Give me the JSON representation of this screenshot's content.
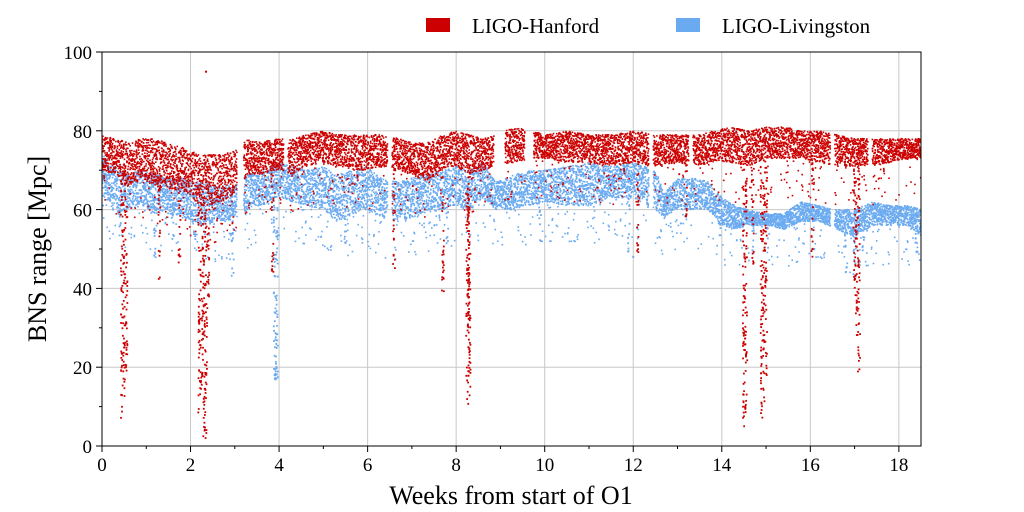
{
  "chart_data": {
    "type": "scatter",
    "xlabel": "Weeks from start of O1",
    "ylabel": "BNS range [Mpc]",
    "xlim": [
      0,
      18.5
    ],
    "ylim": [
      0,
      100
    ],
    "xticks": [
      0,
      2,
      4,
      6,
      8,
      10,
      12,
      14,
      16,
      18
    ],
    "yticks": [
      0,
      20,
      40,
      60,
      80,
      100
    ],
    "grid": true,
    "legend_position": "top-right",
    "series": [
      {
        "name": "LIGO-Hanford",
        "color": "#cc0000",
        "band": [
          [
            0.0,
            70,
            79
          ],
          [
            0.3,
            69,
            78
          ],
          [
            0.6,
            66,
            77
          ],
          [
            0.9,
            68,
            78
          ],
          [
            1.2,
            66,
            78
          ],
          [
            1.5,
            65,
            77
          ],
          [
            1.8,
            65,
            76
          ],
          [
            2.0,
            63,
            75
          ],
          [
            2.2,
            61,
            74
          ],
          [
            2.4,
            61,
            74
          ],
          [
            2.7,
            62,
            74
          ],
          [
            3.0,
            64,
            75
          ],
          [
            3.3,
            69,
            78
          ],
          [
            3.6,
            69,
            77
          ],
          [
            3.9,
            70,
            78
          ],
          [
            4.3,
            69,
            78
          ],
          [
            4.6,
            71,
            79
          ],
          [
            5.0,
            72,
            80
          ],
          [
            5.3,
            71,
            79
          ],
          [
            5.7,
            70,
            79
          ],
          [
            6.0,
            70,
            79
          ],
          [
            6.3,
            71,
            79
          ],
          [
            6.7,
            70,
            78
          ],
          [
            7.0,
            69,
            77
          ],
          [
            7.3,
            67,
            77
          ],
          [
            7.7,
            70,
            79
          ],
          [
            8.0,
            71,
            80
          ],
          [
            8.3,
            69,
            79
          ],
          [
            8.6,
            70,
            78
          ],
          [
            8.9,
            71,
            79
          ],
          [
            9.3,
            72,
            81
          ],
          [
            9.7,
            73,
            80
          ],
          [
            10.0,
            73,
            79
          ],
          [
            10.5,
            72,
            80
          ],
          [
            11.0,
            72,
            79
          ],
          [
            11.5,
            71,
            79
          ],
          [
            12.0,
            72,
            80
          ],
          [
            12.5,
            71,
            79
          ],
          [
            13.0,
            72,
            79
          ],
          [
            13.4,
            71,
            79
          ],
          [
            13.8,
            72,
            80
          ],
          [
            14.2,
            72,
            81
          ],
          [
            14.6,
            71,
            80
          ],
          [
            15.0,
            73,
            81
          ],
          [
            15.4,
            73,
            81
          ],
          [
            15.8,
            73,
            80
          ],
          [
            16.2,
            72,
            80
          ],
          [
            16.6,
            71,
            79
          ],
          [
            17.0,
            71,
            78
          ],
          [
            17.4,
            71,
            78
          ],
          [
            17.8,
            72,
            78
          ],
          [
            18.2,
            73,
            78
          ],
          [
            18.5,
            73,
            78
          ]
        ],
        "gaps": [
          [
            3.05,
            3.2
          ],
          [
            4.1,
            4.2
          ],
          [
            6.45,
            6.55
          ],
          [
            8.85,
            9.1
          ],
          [
            9.55,
            9.75
          ],
          [
            12.35,
            12.45
          ],
          [
            13.25,
            13.35
          ],
          [
            16.45,
            16.55
          ],
          [
            17.3,
            17.4
          ]
        ],
        "dips": [
          [
            0.45,
            6
          ],
          [
            0.5,
            12
          ],
          [
            0.55,
            18
          ],
          [
            1.3,
            42
          ],
          [
            1.75,
            46
          ],
          [
            2.2,
            8
          ],
          [
            2.3,
            1
          ],
          [
            2.35,
            2
          ],
          [
            2.4,
            34
          ],
          [
            2.25,
            14
          ],
          [
            3.85,
            44
          ],
          [
            6.6,
            43
          ],
          [
            7.7,
            39
          ],
          [
            8.25,
            9
          ],
          [
            8.3,
            12
          ],
          [
            8.28,
            20
          ],
          [
            12.1,
            47
          ],
          [
            13.2,
            58
          ],
          [
            14.5,
            5
          ],
          [
            14.55,
            8
          ],
          [
            14.7,
            45
          ],
          [
            14.9,
            7
          ],
          [
            14.95,
            10
          ],
          [
            15.0,
            17
          ],
          [
            16.05,
            46
          ],
          [
            17.1,
            18
          ],
          [
            17.05,
            28
          ],
          [
            17.0,
            35
          ]
        ],
        "outliers": [
          [
            2.35,
            95
          ],
          [
            2.2,
            32
          ],
          [
            2.3,
            12
          ],
          [
            0.5,
            25
          ],
          [
            8.3,
            60
          ],
          [
            14.5,
            40
          ],
          [
            14.9,
            40
          ]
        ]
      },
      {
        "name": "LIGO-Livingston",
        "color": "#6aaaf0",
        "band": [
          [
            0.0,
            64,
            74
          ],
          [
            0.3,
            59,
            71
          ],
          [
            0.6,
            60,
            69
          ],
          [
            0.9,
            61,
            70
          ],
          [
            1.2,
            59,
            69
          ],
          [
            1.5,
            59,
            68
          ],
          [
            1.8,
            58,
            68
          ],
          [
            2.0,
            57,
            67
          ],
          [
            2.3,
            56,
            67
          ],
          [
            2.6,
            57,
            66
          ],
          [
            3.0,
            57,
            66
          ],
          [
            3.3,
            60,
            69
          ],
          [
            3.6,
            61,
            70
          ],
          [
            4.0,
            63,
            72
          ],
          [
            4.3,
            62,
            71
          ],
          [
            4.6,
            61,
            70
          ],
          [
            5.0,
            60,
            71
          ],
          [
            5.3,
            57,
            69
          ],
          [
            5.7,
            59,
            70
          ],
          [
            6.0,
            60,
            71
          ],
          [
            6.3,
            58,
            68
          ],
          [
            6.7,
            57,
            67
          ],
          [
            7.0,
            58,
            68
          ],
          [
            7.3,
            59,
            69
          ],
          [
            7.7,
            60,
            70
          ],
          [
            8.0,
            61,
            71
          ],
          [
            8.3,
            60,
            70
          ],
          [
            8.6,
            63,
            72
          ],
          [
            8.9,
            60,
            67
          ],
          [
            9.3,
            60,
            69
          ],
          [
            9.7,
            61,
            70
          ],
          [
            10.0,
            62,
            70
          ],
          [
            10.5,
            61,
            71
          ],
          [
            11.0,
            61,
            72
          ],
          [
            11.5,
            63,
            71
          ],
          [
            12.0,
            63,
            72
          ],
          [
            12.5,
            60,
            70
          ],
          [
            12.7,
            58,
            64
          ],
          [
            13.0,
            60,
            68
          ],
          [
            13.4,
            60,
            68
          ],
          [
            13.7,
            60,
            67
          ],
          [
            14.0,
            56,
            63
          ],
          [
            14.3,
            55,
            61
          ],
          [
            14.6,
            56,
            60
          ],
          [
            15.0,
            56,
            59
          ],
          [
            15.4,
            55,
            59
          ],
          [
            15.8,
            57,
            62
          ],
          [
            16.2,
            57,
            61
          ],
          [
            16.6,
            55,
            60
          ],
          [
            17.0,
            53,
            60
          ],
          [
            17.4,
            56,
            62
          ],
          [
            17.8,
            56,
            61
          ],
          [
            18.2,
            56,
            61
          ],
          [
            18.5,
            53,
            60
          ]
        ],
        "gaps": [
          [
            3.05,
            3.2
          ],
          [
            6.45,
            6.55
          ],
          [
            12.35,
            12.45
          ],
          [
            16.45,
            16.55
          ]
        ],
        "dips": [
          [
            0.4,
            55
          ],
          [
            1.2,
            47
          ],
          [
            1.6,
            51
          ],
          [
            2.1,
            52
          ],
          [
            2.95,
            42
          ],
          [
            3.9,
            16
          ],
          [
            3.95,
            15
          ],
          [
            5.5,
            51
          ],
          [
            7.8,
            50
          ],
          [
            9.9,
            52
          ],
          [
            11.9,
            49
          ],
          [
            13.95,
            52
          ],
          [
            14.7,
            46
          ],
          [
            15.05,
            50
          ],
          [
            16.8,
            44
          ],
          [
            17.0,
            41
          ],
          [
            17.2,
            47
          ],
          [
            18.4,
            46
          ]
        ],
        "outliers": [
          [
            3.92,
            27
          ],
          [
            3.9,
            18
          ],
          [
            12.0,
            48
          ]
        ]
      }
    ]
  }
}
